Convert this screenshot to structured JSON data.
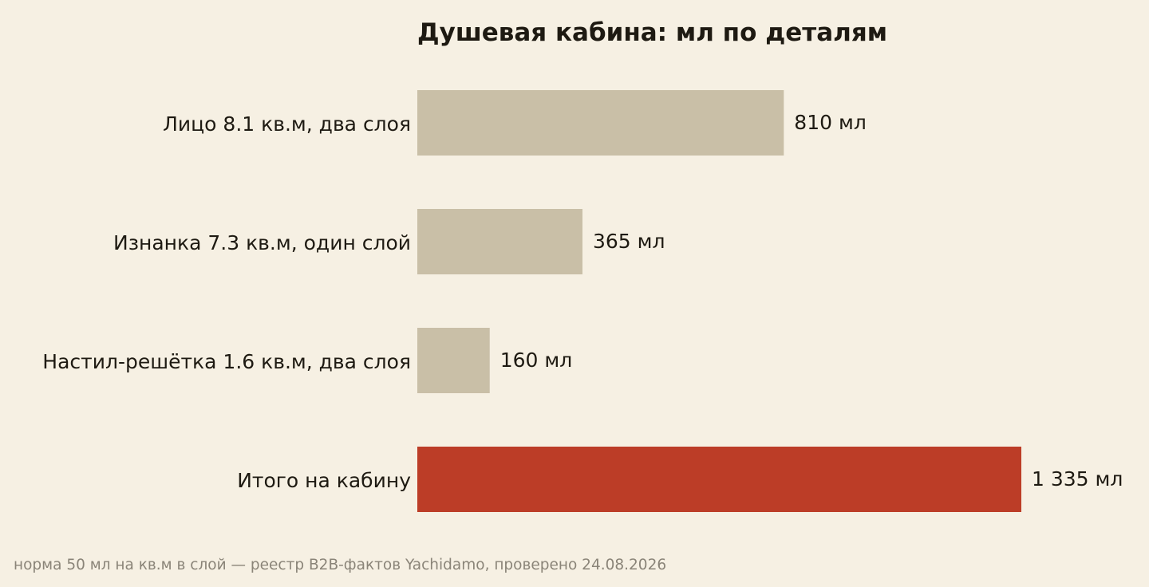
{
  "chart_data": {
    "type": "bar",
    "orientation": "horizontal",
    "title": "Душевая кабина: мл по деталям",
    "categories": [
      "Лицо 8.1 кв.м, два слоя",
      "Изнанка 7.3 кв.м, один слой",
      "Настил-решётка 1.6 кв.м, два слоя",
      "Итого на кабину"
    ],
    "values": [
      810,
      365,
      160,
      1335
    ],
    "value_labels": [
      "810 мл",
      "365 мл",
      "160 мл",
      "1 335 мл"
    ],
    "unit": "мл",
    "xlim": [
      0,
      1335
    ],
    "grid": false,
    "bar_colors": [
      "#c9bfa7",
      "#c9bfa7",
      "#c9bfa7",
      "#bc3d27"
    ],
    "footnote": "норма 50 мл на кв.м в слой — реестр B2B-фактов Yachidamo, проверено 24.08.2026"
  },
  "colors": {
    "background": "#f6f0e3",
    "bar_default": "#c9bfa7",
    "bar_total": "#bc3d27",
    "text": "#1e1a12",
    "footnote": "#8a8478"
  }
}
